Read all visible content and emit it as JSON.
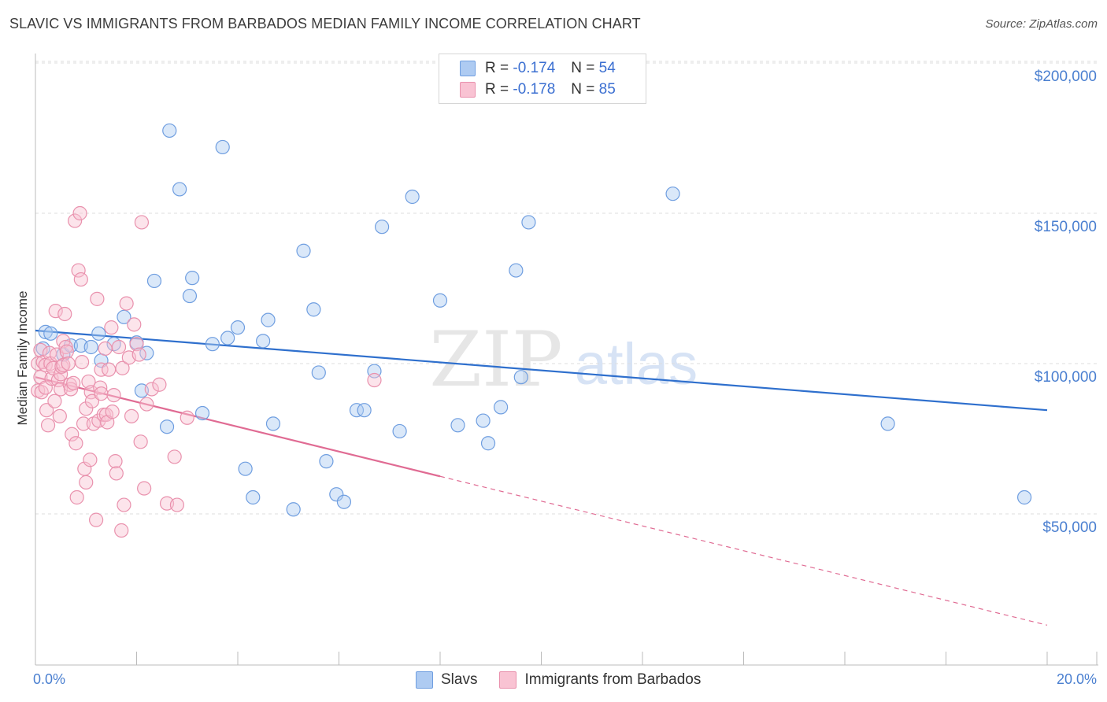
{
  "header": {
    "title": "SLAVIC VS IMMIGRANTS FROM BARBADOS MEDIAN FAMILY INCOME CORRELATION CHART",
    "source": "Source: ZipAtlas.com"
  },
  "watermark": {
    "zip": "ZIP",
    "atlas": "atlas"
  },
  "legend": {
    "r_label": "R =",
    "n_label": "N =",
    "series": [
      {
        "name": "Slavs",
        "r": "-0.174",
        "n": "54",
        "fill": "#aecbf2",
        "stroke": "#6f9ee0"
      },
      {
        "name": "Immigrants from Barbados",
        "r": "-0.178",
        "n": "85",
        "fill": "#f9c3d3",
        "stroke": "#e991ad"
      }
    ]
  },
  "chart_data": {
    "type": "scatter",
    "title": "SLAVIC VS IMMIGRANTS FROM BARBADOS MEDIAN FAMILY INCOME CORRELATION CHART",
    "xlabel": "",
    "ylabel": "Median Family Income",
    "xlim": [
      0,
      20
    ],
    "ylim": [
      0,
      210000
    ],
    "x_tick_labels": {
      "min": "0.0%",
      "max": "20.0%"
    },
    "y_ticks": [
      {
        "value": 50000,
        "label": "$50,000"
      },
      {
        "value": 100000,
        "label": "$100,000"
      },
      {
        "value": 150000,
        "label": "$150,000"
      },
      {
        "value": 200000,
        "label": "$200,000"
      }
    ],
    "grid": true,
    "series": [
      {
        "name": "Slavs",
        "color": "#6f9ee0",
        "fill": "#aecbf2",
        "trend": {
          "x1": 0.0,
          "y1": 111000,
          "x2": 20.0,
          "y2": 84500,
          "dashed_to": null,
          "line_color": "#2e6fcd"
        },
        "points": [
          [
            0.15,
            105000
          ],
          [
            0.2,
            110500
          ],
          [
            0.3,
            110000
          ],
          [
            0.55,
            103000
          ],
          [
            0.7,
            106000
          ],
          [
            0.9,
            106000
          ],
          [
            1.1,
            105500
          ],
          [
            1.25,
            110000
          ],
          [
            1.3,
            101000
          ],
          [
            1.55,
            106500
          ],
          [
            1.75,
            115500
          ],
          [
            2.0,
            107000
          ],
          [
            2.1,
            91000
          ],
          [
            2.2,
            103500
          ],
          [
            2.35,
            127500
          ],
          [
            2.6,
            79000
          ],
          [
            2.65,
            177500
          ],
          [
            2.85,
            158000
          ],
          [
            3.05,
            122500
          ],
          [
            3.1,
            128500
          ],
          [
            3.3,
            83500
          ],
          [
            3.5,
            106500
          ],
          [
            3.7,
            172000
          ],
          [
            3.8,
            108500
          ],
          [
            4.0,
            112000
          ],
          [
            4.15,
            65000
          ],
          [
            4.3,
            55500
          ],
          [
            4.5,
            107500
          ],
          [
            4.6,
            114500
          ],
          [
            4.7,
            80000
          ],
          [
            5.1,
            51500
          ],
          [
            5.3,
            137500
          ],
          [
            5.5,
            118000
          ],
          [
            5.6,
            97000
          ],
          [
            5.75,
            67500
          ],
          [
            5.95,
            56500
          ],
          [
            6.1,
            54000
          ],
          [
            6.35,
            84500
          ],
          [
            6.5,
            84500
          ],
          [
            6.7,
            97500
          ],
          [
            6.85,
            145500
          ],
          [
            7.2,
            77500
          ],
          [
            7.45,
            155500
          ],
          [
            8.0,
            121000
          ],
          [
            8.35,
            79500
          ],
          [
            8.85,
            81000
          ],
          [
            8.95,
            73500
          ],
          [
            9.2,
            85500
          ],
          [
            9.5,
            131000
          ],
          [
            9.6,
            95500
          ],
          [
            9.75,
            147000
          ],
          [
            12.6,
            156500
          ],
          [
            16.85,
            80000
          ],
          [
            19.55,
            55500
          ]
        ]
      },
      {
        "name": "Immigrants from Barbados",
        "color": "#e991ad",
        "fill": "#f9c3d3",
        "trend": {
          "x1": 0.0,
          "y1": 95500,
          "x2": 8.0,
          "y2": 62500,
          "dashed_to": {
            "x": 20.0,
            "y": 13000
          },
          "line_color": "#e06b93"
        },
        "points": [
          [
            0.05,
            100000
          ],
          [
            0.05,
            91000
          ],
          [
            0.1,
            104500
          ],
          [
            0.1,
            95500
          ],
          [
            0.12,
            90500
          ],
          [
            0.15,
            100500
          ],
          [
            0.2,
            99500
          ],
          [
            0.2,
            92000
          ],
          [
            0.22,
            84500
          ],
          [
            0.25,
            79500
          ],
          [
            0.28,
            103500
          ],
          [
            0.3,
            100000
          ],
          [
            0.32,
            95000
          ],
          [
            0.35,
            98500
          ],
          [
            0.38,
            87500
          ],
          [
            0.4,
            117500
          ],
          [
            0.42,
            103000
          ],
          [
            0.45,
            94500
          ],
          [
            0.48,
            82500
          ],
          [
            0.5,
            96500
          ],
          [
            0.5,
            91500
          ],
          [
            0.52,
            99000
          ],
          [
            0.55,
            107500
          ],
          [
            0.55,
            99500
          ],
          [
            0.58,
            116500
          ],
          [
            0.6,
            105500
          ],
          [
            0.62,
            104000
          ],
          [
            0.65,
            100000
          ],
          [
            0.68,
            93000
          ],
          [
            0.7,
            91500
          ],
          [
            0.72,
            76500
          ],
          [
            0.75,
            93500
          ],
          [
            0.78,
            147500
          ],
          [
            0.8,
            73500
          ],
          [
            0.82,
            55500
          ],
          [
            0.85,
            131000
          ],
          [
            0.88,
            150000
          ],
          [
            0.9,
            128000
          ],
          [
            0.92,
            100500
          ],
          [
            0.95,
            80000
          ],
          [
            0.97,
            65000
          ],
          [
            1.0,
            85000
          ],
          [
            1.0,
            60500
          ],
          [
            1.05,
            94000
          ],
          [
            1.08,
            68000
          ],
          [
            1.1,
            90500
          ],
          [
            1.12,
            87500
          ],
          [
            1.15,
            80000
          ],
          [
            1.2,
            48000
          ],
          [
            1.22,
            121500
          ],
          [
            1.25,
            81000
          ],
          [
            1.28,
            92000
          ],
          [
            1.3,
            98000
          ],
          [
            1.3,
            90000
          ],
          [
            1.35,
            83000
          ],
          [
            1.38,
            105000
          ],
          [
            1.4,
            83000
          ],
          [
            1.42,
            80500
          ],
          [
            1.45,
            98000
          ],
          [
            1.5,
            112000
          ],
          [
            1.52,
            84000
          ],
          [
            1.55,
            89500
          ],
          [
            1.58,
            67500
          ],
          [
            1.6,
            63500
          ],
          [
            1.65,
            105500
          ],
          [
            1.7,
            44500
          ],
          [
            1.72,
            98500
          ],
          [
            1.75,
            53000
          ],
          [
            1.8,
            120000
          ],
          [
            1.85,
            102000
          ],
          [
            1.9,
            82500
          ],
          [
            1.95,
            113000
          ],
          [
            2.0,
            106500
          ],
          [
            2.05,
            103000
          ],
          [
            2.08,
            74000
          ],
          [
            2.1,
            147000
          ],
          [
            2.15,
            58500
          ],
          [
            2.2,
            86500
          ],
          [
            2.3,
            91500
          ],
          [
            2.45,
            93000
          ],
          [
            2.6,
            53500
          ],
          [
            2.75,
            69000
          ],
          [
            2.8,
            53000
          ],
          [
            3.0,
            82000
          ],
          [
            6.7,
            94500
          ]
        ]
      }
    ]
  }
}
